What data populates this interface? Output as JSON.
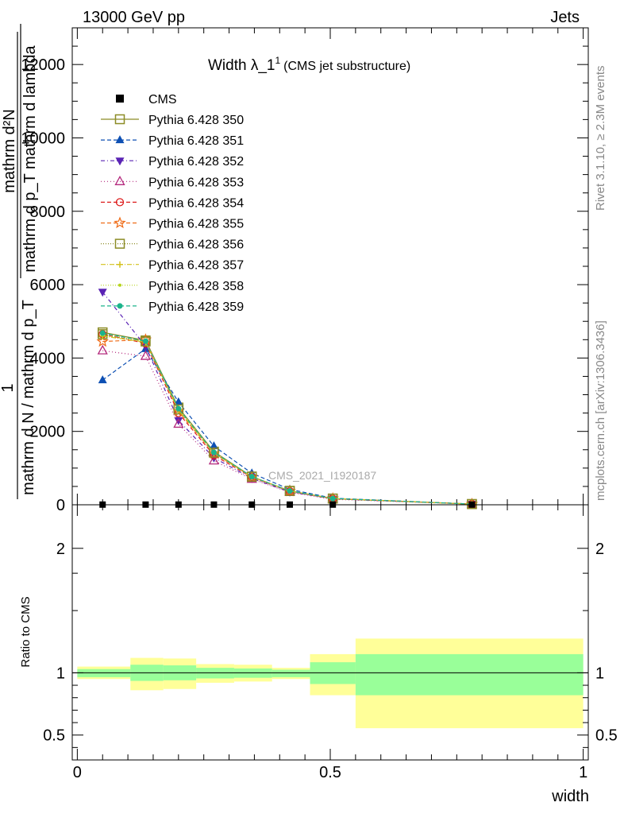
{
  "header": {
    "left": "13000 GeV pp",
    "right": "Jets"
  },
  "side_labels": {
    "rivet": "Rivet 3.1.10, ≥ 2.3M events",
    "mcplots": "mcplots.cern.ch [arXiv:1306.3436]"
  },
  "chart_data": {
    "type": "line",
    "title": "Width λ_1",
    "title_sup": "1",
    "subtitle": "(CMS jet substructure)",
    "watermark": "CMS_2021_I1920187",
    "ylabel_main": {
      "top": "mathrm d²N",
      "bottom": "mathrm d p_T mathrm d lambda",
      "outer_num": "1",
      "outer_den": "mathrm d N / mathrm d p_T"
    },
    "ylabel_ratio": "Ratio to CMS",
    "xlabel": "width",
    "xlim": [
      -0.01,
      1.01
    ],
    "ylim_main": [
      0,
      13000
    ],
    "ylim_ratio": [
      0.3,
      2.35
    ],
    "xticks": [
      0,
      0.5,
      1
    ],
    "xtick_labels": [
      "0",
      "0.5",
      "1"
    ],
    "yticks_main": [
      0,
      2000,
      4000,
      6000,
      8000,
      10000,
      12000
    ],
    "ytick_labels_main": [
      "0",
      "2000",
      "4000",
      "6000",
      "8000",
      "10000",
      "12000"
    ],
    "yticks_ratio": [
      0.5,
      1,
      2
    ],
    "ytick_labels_ratio": [
      "0.5",
      "1",
      "2"
    ],
    "x": [
      0.05,
      0.135,
      0.2,
      0.27,
      0.345,
      0.42,
      0.505,
      0.78
    ],
    "bin_edges": [
      0,
      0.105,
      0.17,
      0.235,
      0.31,
      0.385,
      0.46,
      0.55,
      1.0
    ],
    "cms": {
      "name": "CMS",
      "color": "#000000",
      "values": [
        5,
        5,
        5,
        5,
        5,
        5,
        5,
        5
      ]
    },
    "series": [
      {
        "name": "Pythia 6.428 350",
        "color": "#8c8c26",
        "marker": "square-open",
        "dash": "",
        "values": [
          4700,
          4480,
          2650,
          1450,
          770,
          380,
          170,
          20
        ]
      },
      {
        "name": "Pythia 6.428 351",
        "color": "#0d4fb3",
        "marker": "triangle-up-filled",
        "dash": "5,3",
        "values": [
          3400,
          4250,
          2800,
          1600,
          860,
          420,
          180,
          20
        ]
      },
      {
        "name": "Pythia 6.428 352",
        "color": "#5a23b4",
        "marker": "triangle-down-filled",
        "dash": "5,3,1,3",
        "values": [
          5800,
          4320,
          2300,
          1280,
          720,
          350,
          160,
          20
        ]
      },
      {
        "name": "Pythia 6.428 353",
        "color": "#b4297d",
        "marker": "triangle-up-open",
        "dash": "1,3",
        "values": [
          4200,
          4050,
          2200,
          1200,
          700,
          340,
          150,
          20
        ]
      },
      {
        "name": "Pythia 6.428 354",
        "color": "#dd1c1c",
        "marker": "circle-open",
        "dash": "5,3",
        "values": [
          4650,
          4400,
          2500,
          1350,
          750,
          370,
          165,
          20
        ]
      },
      {
        "name": "Pythia 6.428 355",
        "color": "#ef6b16",
        "marker": "star-open",
        "dash": "5,3",
        "values": [
          4450,
          4500,
          2550,
          1400,
          760,
          375,
          168,
          20
        ]
      },
      {
        "name": "Pythia 6.428 356",
        "color": "#8c8c26",
        "marker": "square-open",
        "dash": "1,2",
        "values": [
          4650,
          4450,
          2600,
          1420,
          765,
          378,
          170,
          20
        ]
      },
      {
        "name": "Pythia 6.428 357",
        "color": "#d4c11c",
        "marker": "cross",
        "dash": "6,2,1,2",
        "values": [
          4600,
          4430,
          2580,
          1410,
          760,
          376,
          169,
          20
        ]
      },
      {
        "name": "Pythia 6.428 358",
        "color": "#b6d41c",
        "marker": "dot",
        "dash": "1,2",
        "values": [
          4620,
          4440,
          2590,
          1415,
          762,
          377,
          169,
          20
        ]
      },
      {
        "name": "Pythia 6.428 359",
        "color": "#1cb48c",
        "marker": "circle-filled",
        "dash": "5,3",
        "values": [
          4680,
          4460,
          2620,
          1430,
          768,
          379,
          171,
          20
        ]
      }
    ],
    "ratio_bands": {
      "inner_color": "#99ff99",
      "outer_color": "#ffff99",
      "inner": [
        [
          0.965,
          1.03
        ],
        [
          0.935,
          1.065
        ],
        [
          0.94,
          1.06
        ],
        [
          0.955,
          1.04
        ],
        [
          0.96,
          1.035
        ],
        [
          0.965,
          1.025
        ],
        [
          0.91,
          1.085
        ],
        [
          0.82,
          1.15
        ]
      ],
      "outer": [
        [
          0.95,
          1.05
        ],
        [
          0.86,
          1.12
        ],
        [
          0.87,
          1.115
        ],
        [
          0.92,
          1.07
        ],
        [
          0.93,
          1.065
        ],
        [
          0.95,
          1.04
        ],
        [
          0.82,
          1.15
        ],
        [
          0.555,
          1.275
        ]
      ]
    }
  }
}
